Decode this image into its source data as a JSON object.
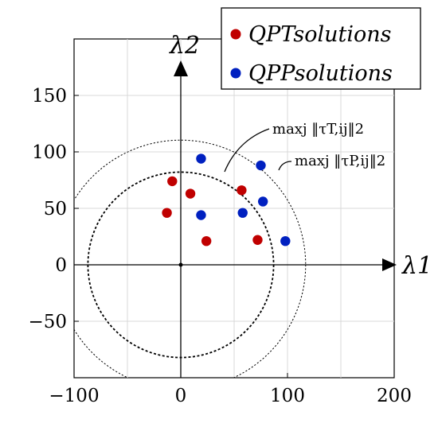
{
  "chart_data": {
    "type": "scatter",
    "title": "",
    "xlim": [
      -100,
      200
    ],
    "ylim": [
      -100,
      200
    ],
    "grid": true,
    "x_ticks": [
      -100,
      0,
      100,
      200
    ],
    "y_ticks": [
      -50,
      0,
      50,
      100,
      150
    ],
    "x_tick_labels": [
      "−100",
      "0",
      "100",
      "200"
    ],
    "y_tick_labels": [
      "−50",
      "0",
      "50",
      "100",
      "150"
    ],
    "axis_labels": {
      "x": "λ1",
      "y": "λ2"
    },
    "legend": {
      "position": "top-right",
      "entries": [
        {
          "label": "QPTsolutions",
          "color": "#c00000"
        },
        {
          "label": "QPPsolutions",
          "color": "#0020c0"
        }
      ]
    },
    "series": [
      {
        "name": "QPTsolutions",
        "color": "#c00000",
        "points": [
          {
            "x": -13,
            "y": 46
          },
          {
            "x": -8,
            "y": 74
          },
          {
            "x": 9,
            "y": 63
          },
          {
            "x": 24,
            "y": 21
          },
          {
            "x": 57,
            "y": 66
          },
          {
            "x": 72,
            "y": 22
          }
        ]
      },
      {
        "name": "QPPsolutions",
        "color": "#0020c0",
        "points": [
          {
            "x": 19,
            "y": 94
          },
          {
            "x": 19,
            "y": 44
          },
          {
            "x": 58,
            "y": 46
          },
          {
            "x": 75,
            "y": 88
          },
          {
            "x": 77,
            "y": 56
          },
          {
            "x": 98,
            "y": 21
          }
        ]
      }
    ],
    "circles": [
      {
        "name": "tau-T",
        "center": [
          0,
          0
        ],
        "radius": 87,
        "style": "dotted-bold"
      },
      {
        "name": "tau-P",
        "center": [
          0,
          0
        ],
        "radius": 117,
        "style": "dotted-thin"
      }
    ],
    "annotations": [
      {
        "name": "annot-tau-T",
        "text": "maxj ‖τT,ij‖2",
        "points_to": [
          37,
          80
        ]
      },
      {
        "name": "annot-tau-P",
        "text": "maxj ‖τP,ij‖2",
        "points_to": [
          85,
          82
        ]
      }
    ]
  }
}
